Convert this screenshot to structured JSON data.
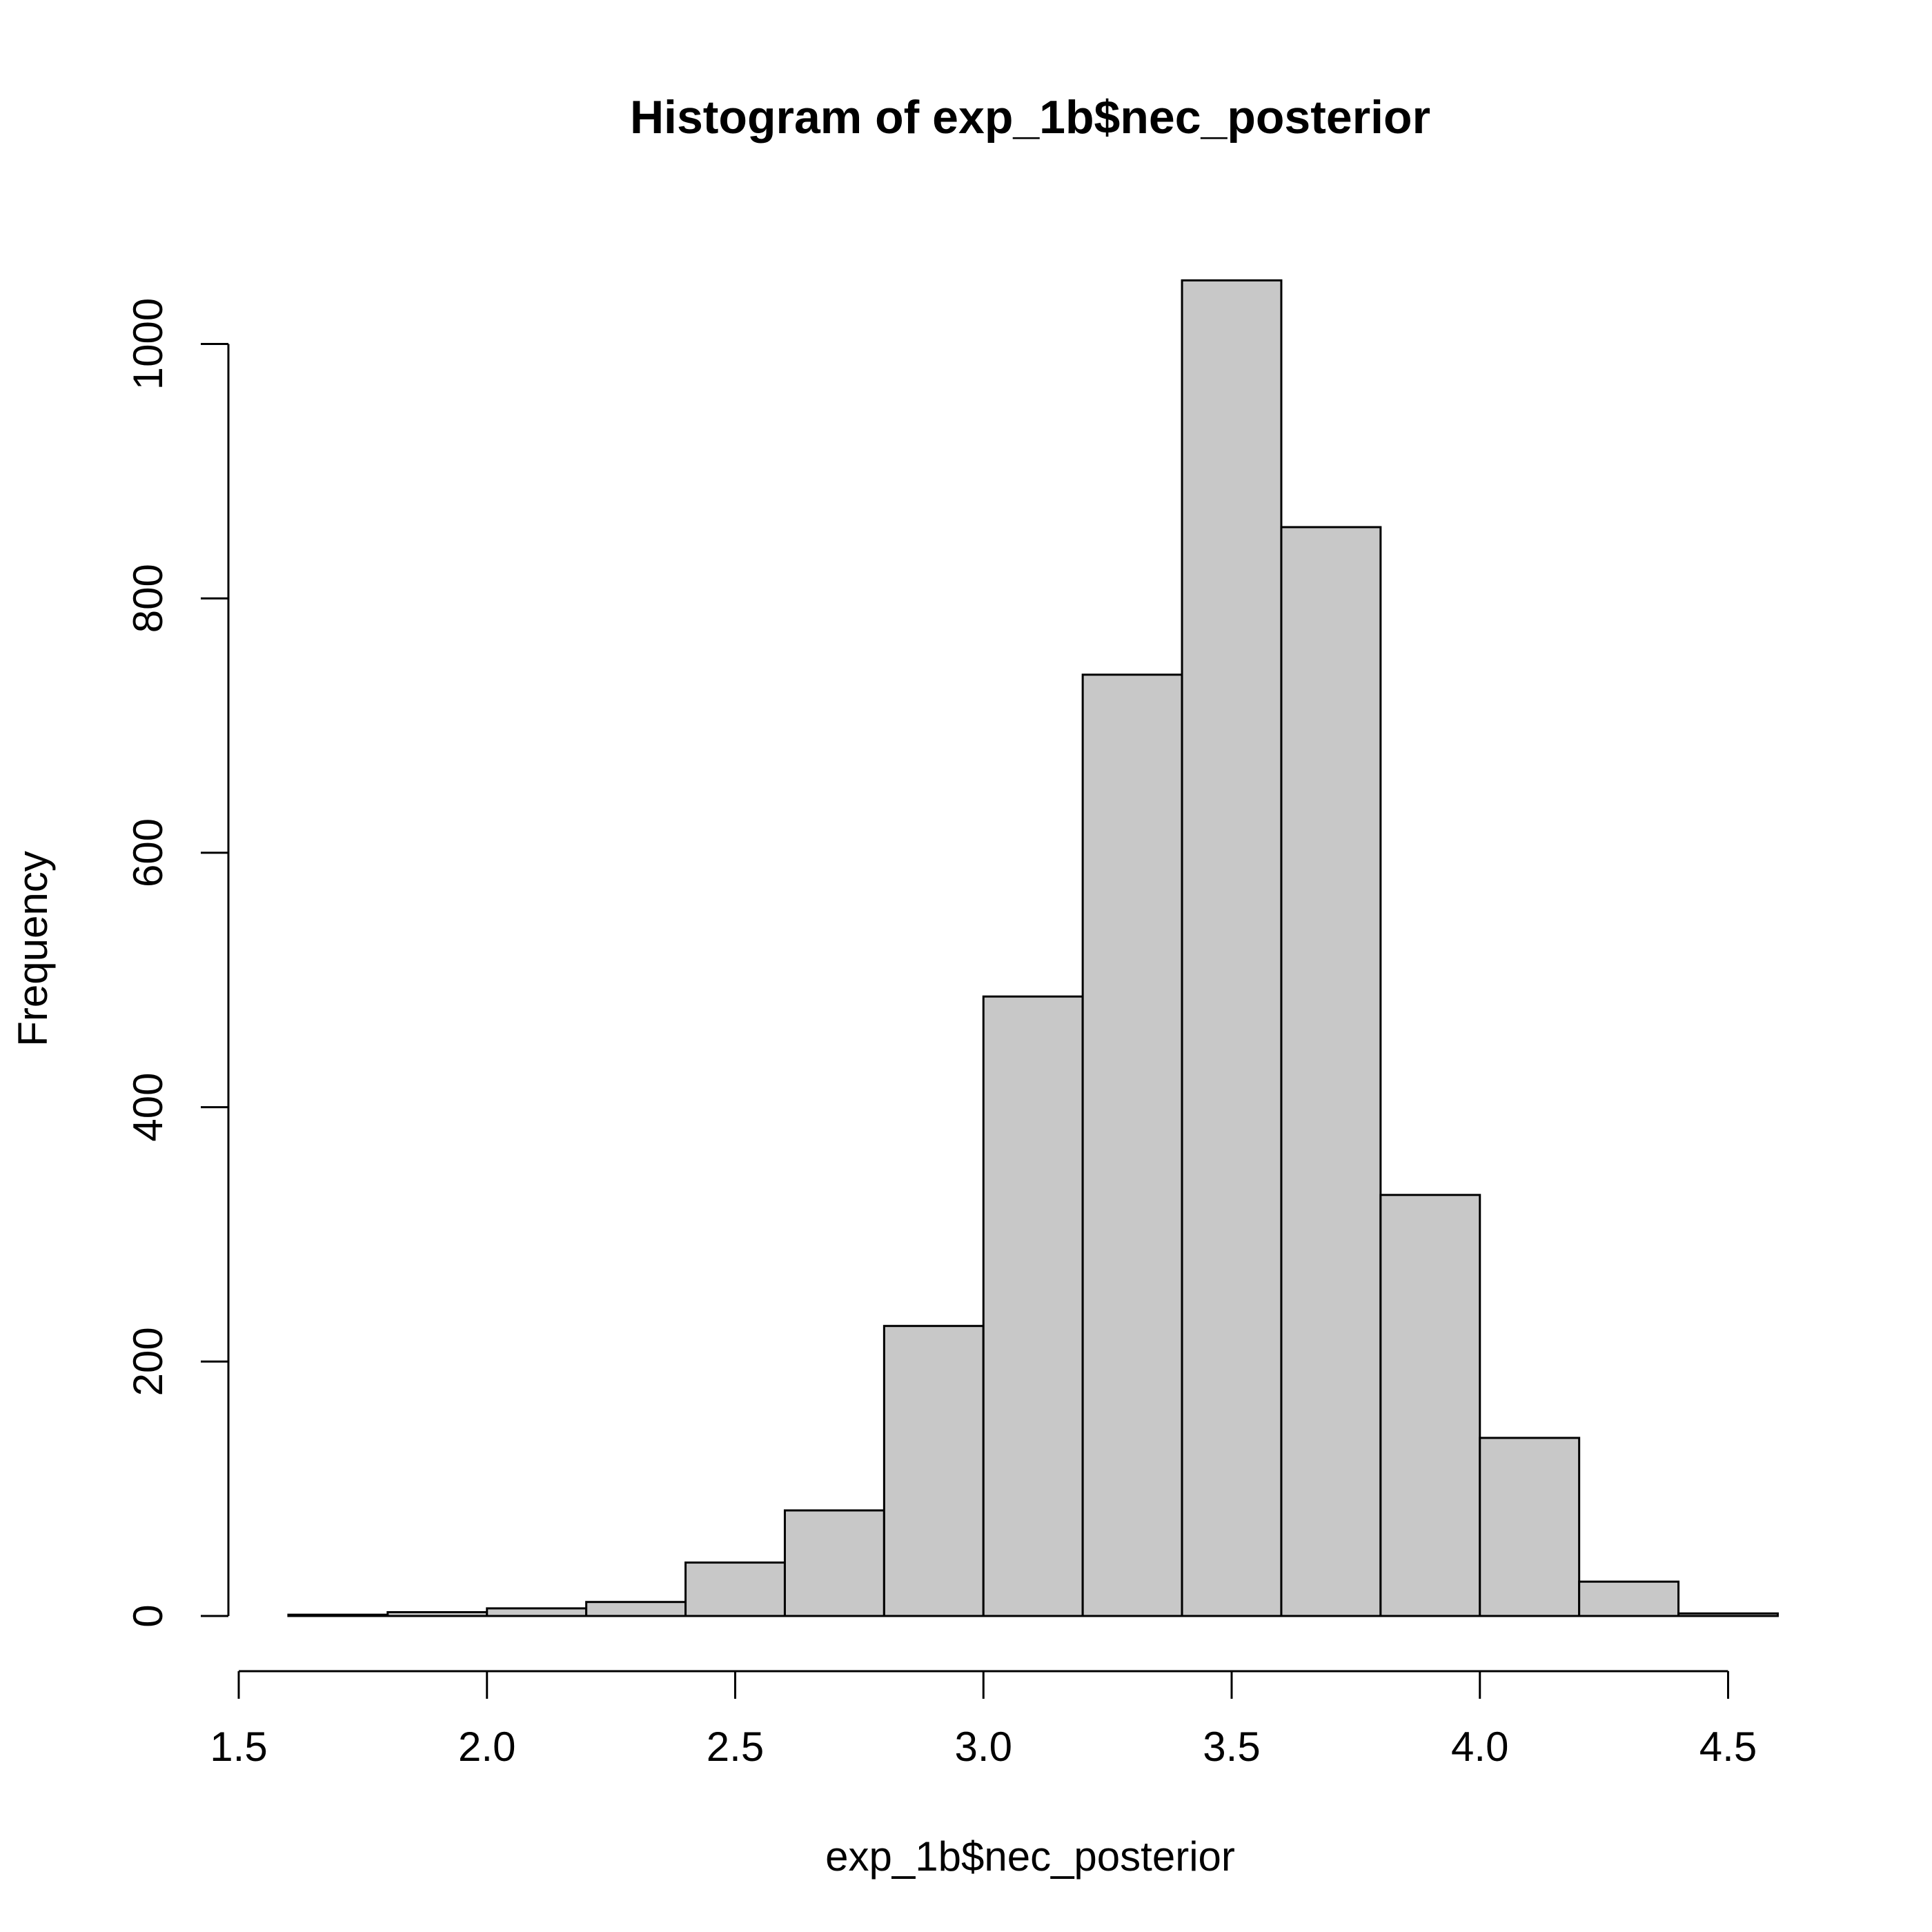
{
  "chart_data": {
    "type": "bar",
    "title": "Histogram of exp_1b$nec_posterior",
    "xlabel": "exp_1b$nec_posterior",
    "ylabel": "Frequency",
    "bin_edges": [
      1.6,
      1.8,
      2.0,
      2.2,
      2.4,
      2.6,
      2.8,
      3.0,
      3.2,
      3.4,
      3.6,
      3.8,
      4.0,
      4.2,
      4.4,
      4.6
    ],
    "values": [
      1,
      3,
      6,
      11,
      42,
      83,
      228,
      487,
      740,
      1050,
      856,
      331,
      140,
      27,
      2
    ],
    "xlim": [
      1.5,
      4.6
    ],
    "ylim": [
      0,
      1050
    ],
    "x_ticks": [
      "1.5",
      "2.0",
      "2.5",
      "3.0",
      "3.5",
      "4.0",
      "4.5"
    ],
    "y_ticks": [
      "0",
      "200",
      "400",
      "600",
      "800",
      "1000"
    ],
    "bar_color": "#c8c8c8",
    "grid": false,
    "legend": "none"
  }
}
